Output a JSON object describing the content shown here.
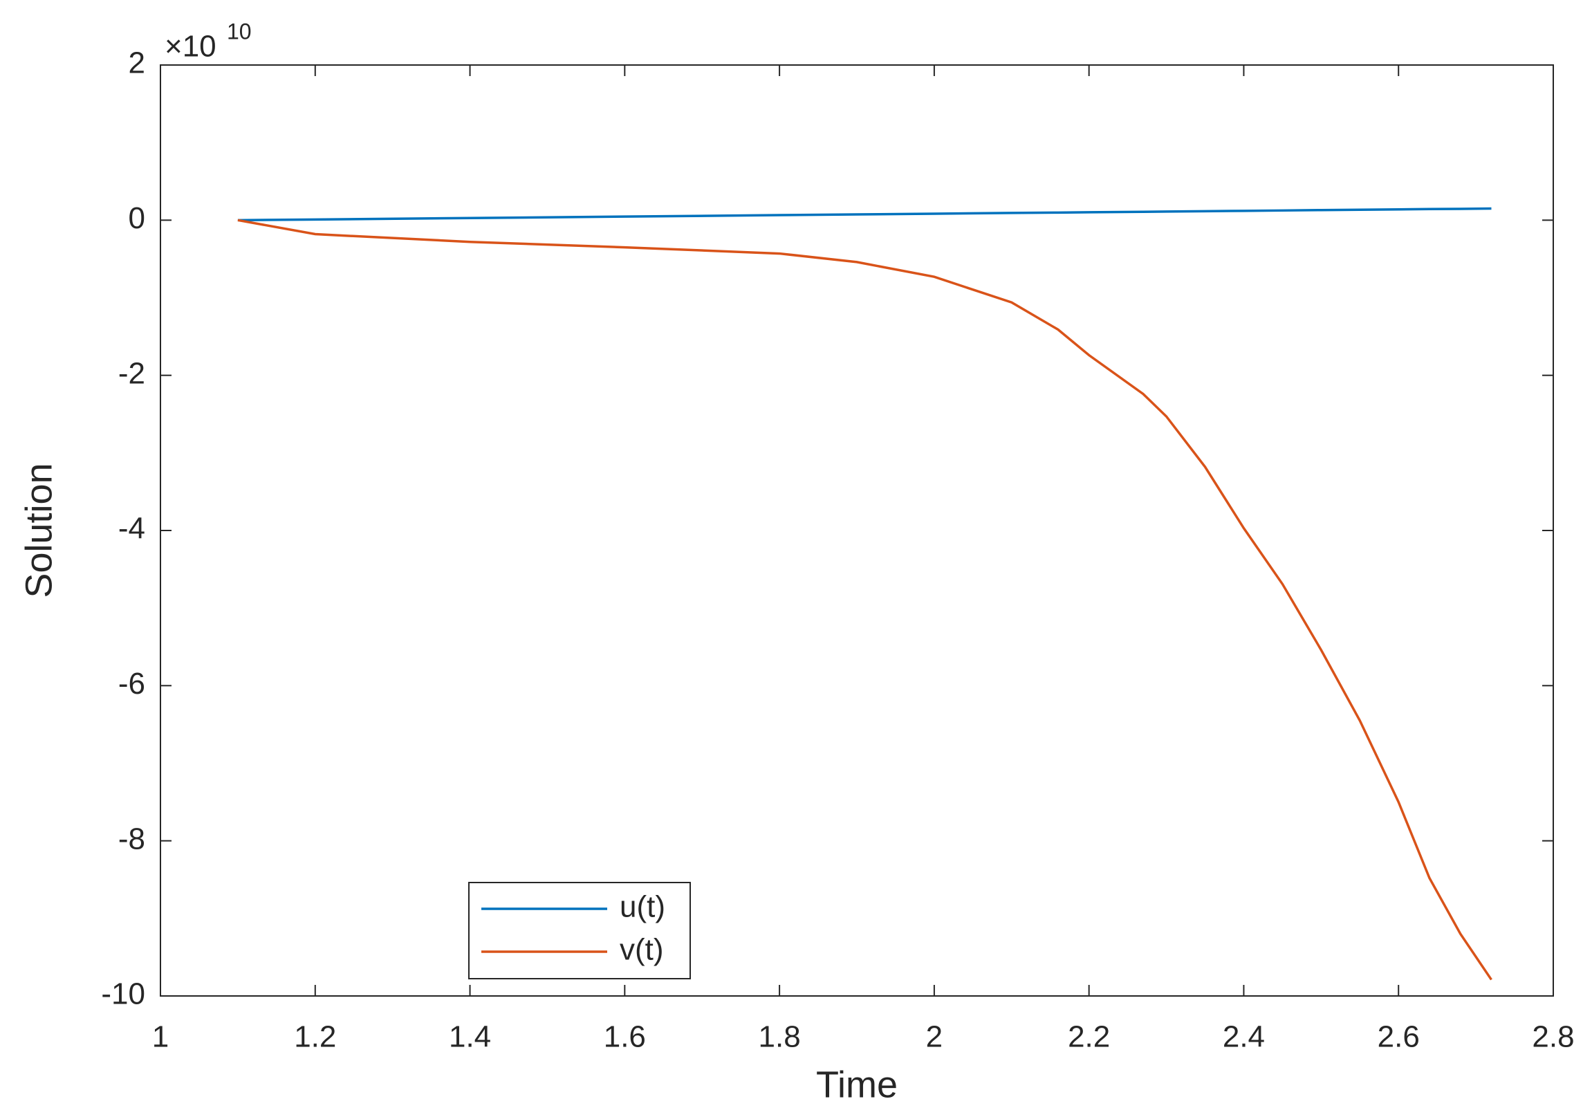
{
  "chart_data": {
    "type": "line",
    "xlabel": "Time",
    "ylabel": "Solution",
    "y_multiplier": {
      "base": "×10",
      "exponent": "10"
    },
    "x": [
      1.1,
      1.2,
      1.4,
      1.6,
      1.8,
      1.9,
      2.0,
      2.1,
      2.16,
      2.2,
      2.27,
      2.3,
      2.35,
      2.4,
      2.45,
      2.5,
      2.55,
      2.6,
      2.64,
      2.68,
      2.72
    ],
    "series": [
      {
        "name": "u(t)",
        "color": "#0072BD",
        "values": [
          0,
          0.009,
          0.028,
          0.046,
          0.065,
          0.074,
          0.083,
          0.093,
          0.098,
          0.102,
          0.108,
          0.111,
          0.116,
          0.12,
          0.125,
          0.13,
          0.134,
          0.139,
          0.143,
          0.146,
          0.15
        ]
      },
      {
        "name": "v(t)",
        "color": "#D95319",
        "values": [
          0,
          -0.18,
          -0.28,
          -0.35,
          -0.43,
          -0.54,
          -0.73,
          -1.06,
          -1.41,
          -1.74,
          -2.24,
          -2.53,
          -3.18,
          -3.97,
          -4.69,
          -5.54,
          -6.45,
          -7.5,
          -8.48,
          -9.2,
          -9.79
        ]
      }
    ],
    "xlim": [
      1,
      2.8
    ],
    "xticks": [
      1,
      1.2,
      1.4,
      1.6,
      1.8,
      2,
      2.2,
      2.4,
      2.6,
      2.8
    ],
    "ylim": [
      -10,
      2
    ],
    "yticks": [
      -10,
      -8,
      -6,
      -4,
      -2,
      0,
      2
    ],
    "grid": false,
    "legend": "lower-left"
  }
}
